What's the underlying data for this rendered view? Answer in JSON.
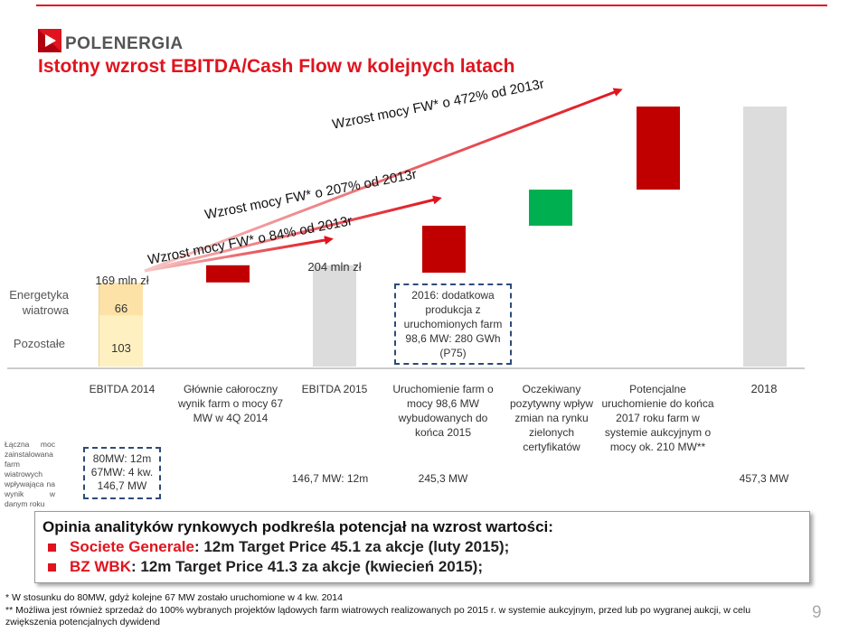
{
  "header": {
    "logo_text": "POLENERGIA",
    "title": "Istotny wzrost EBITDA/Cash Flow w kolejnych latach",
    "accent_color": "#e0141e"
  },
  "side_labels": {
    "wind": "Energetyka wiatrowa",
    "other": "Pozostałe",
    "capacity_note": "Łączna moc zainstalowana farm wiatrowych wpływająca na wynik w danym roku"
  },
  "growth_arrows": [
    {
      "label": "Wzrost mocy FW* o 84% od 2013r"
    },
    {
      "label": "Wzrost mocy FW* o 207% od 2013r"
    },
    {
      "label": "Wzrost mocy FW* o 472% od 2013r"
    }
  ],
  "chart_data": {
    "type": "bar",
    "subtype": "waterfall",
    "unit": "mln zł",
    "categories": [
      "EBITDA 2014",
      "Głównie całoroczny wynik farm o mocy 67 MW w 4Q 2014",
      "EBITDA 2015",
      "Uruchomienie farm o mocy 98,6 MW wybudowanych do końca 2015",
      "Oczekiwany pozytywny wpływ zmian na rynku zielonych certyfikatów",
      "Potencjalne uruchomienie do końca 2017 roku farm w systemie aukcyjnym o mocy ok. 210 MW**",
      "2018"
    ],
    "totals": [
      {
        "category": "EBITDA 2014",
        "label": "169 mln zł",
        "value": 169,
        "segments": [
          {
            "name": "Pozostałe",
            "value": 103,
            "label": "103"
          },
          {
            "name": "Energetyka wiatrowa",
            "value": 66,
            "label": "66"
          }
        ]
      },
      {
        "category": "EBITDA 2015",
        "label": "204 mln zł",
        "value": 204
      },
      {
        "category": "2018"
      }
    ],
    "capacity_labels": [
      "80MW: 12m",
      "67MW: 4 kw.",
      "146,7 MW",
      "146,7 MW: 12m",
      "245,3 MW",
      "457,3 MW"
    ],
    "box_note": "2016: dodatkowa produkcja z uruchomionych farm 98,6 MW: 280 GWh (P75)",
    "colors": {
      "wind": "#fce2a6",
      "other": "#fff0c2",
      "total": "#dcdcdc",
      "increase": "#c00000",
      "green": "#00b050",
      "dashed": "#2e4a7a"
    }
  },
  "opinion": {
    "title": "Opinia analityków rynkowych podkreśla potencjał na wzrost wartości:",
    "items": [
      {
        "firm": "Societe Generale",
        "text": ": 12m Target Price 45.1 za akcje (luty 2015);"
      },
      {
        "firm": "BZ WBK",
        "text": ": 12m Target Price 41.3 za akcje (kwiecień 2015);"
      }
    ]
  },
  "footnotes": {
    "note1": "* W stosunku do 80MW, gdyż kolejne 67 MW zostało uruchomione w 4 kw. 2014",
    "note2": "** Możliwa jest również sprzedaż do 100% wybranych projektów lądowych farm wiatrowych realizowanych po 2015 r. w systemie aukcyjnym, przed lub po wygranej aukcji, w celu zwiększenia potencjalnych dywidend"
  },
  "page_number": "9"
}
